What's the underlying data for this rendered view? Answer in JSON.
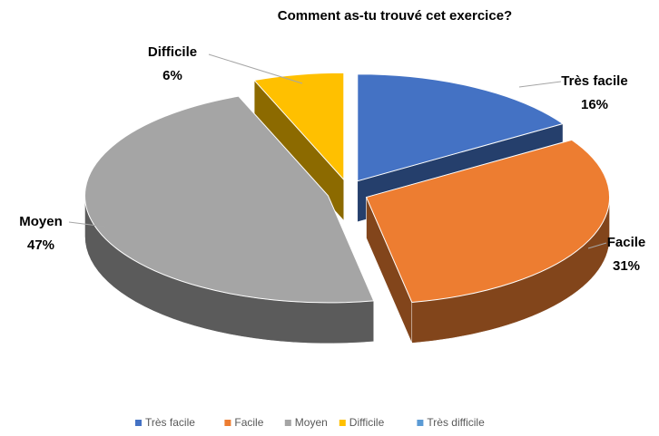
{
  "chart_data": {
    "type": "pie",
    "title": "Comment as-tu trouvé cet exercice?",
    "categories": [
      "Très facile",
      "Facile",
      "Moyen",
      "Difficile",
      "Très difficile"
    ],
    "values": [
      16,
      31,
      47,
      6,
      0
    ],
    "value_labels": [
      "16%",
      "31%",
      "47%",
      "6%",
      null
    ],
    "colors": [
      "#4472c4",
      "#ed7d31",
      "#a5a5a5",
      "#ffc000",
      "#5b9bd5"
    ],
    "legend": "bottom"
  }
}
